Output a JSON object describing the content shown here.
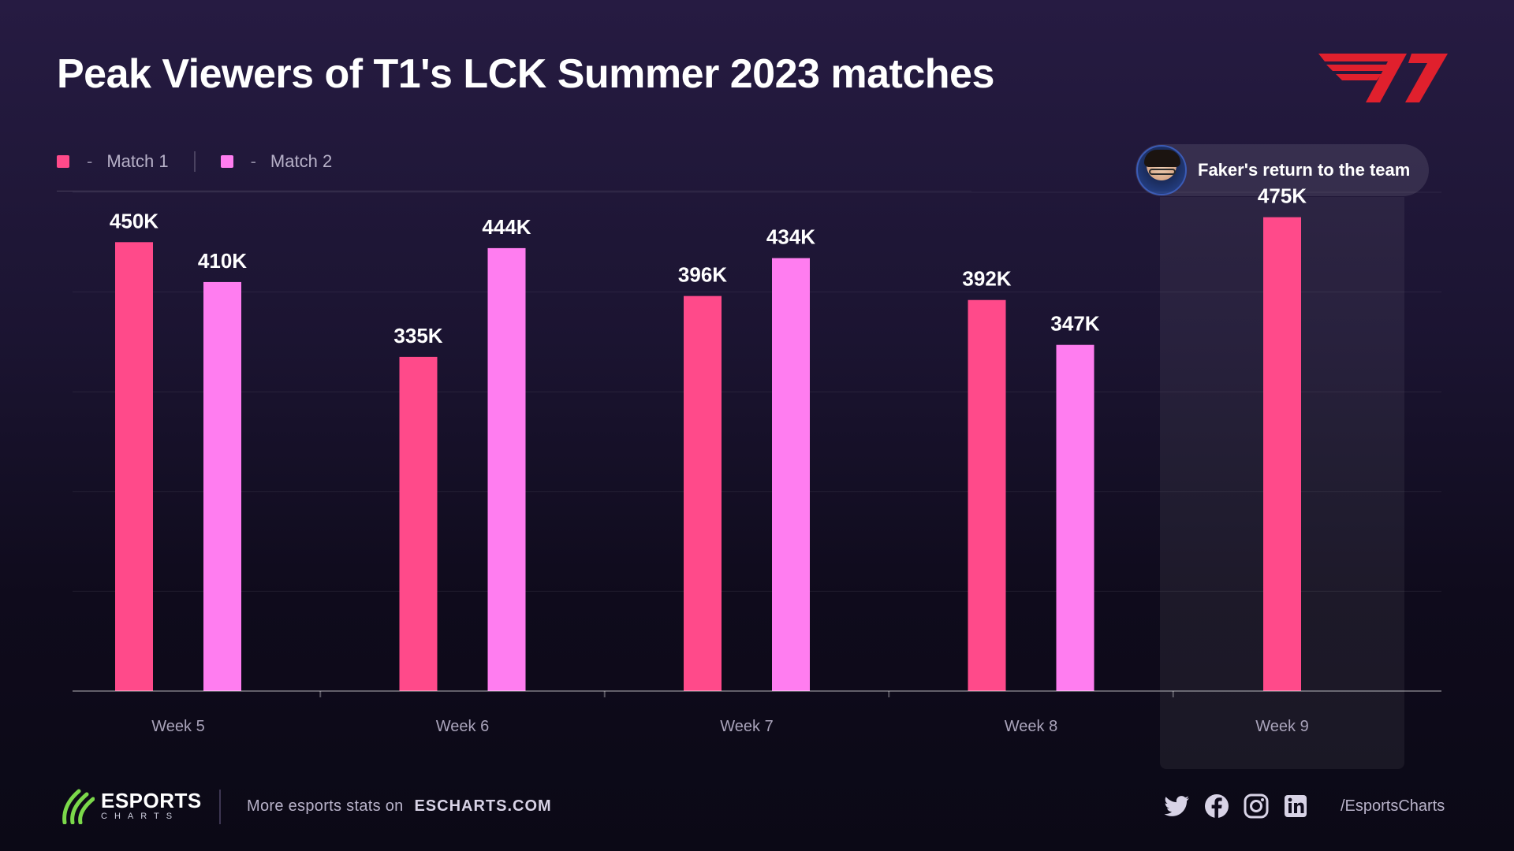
{
  "title": "Peak Viewers of T1's LCK Summer 2023 matches",
  "legend": {
    "dash": "-",
    "items": [
      {
        "label": "Match 1",
        "color": "#ff4a8a"
      },
      {
        "label": "Match 2",
        "color": "#ff7df0"
      }
    ]
  },
  "annotation": {
    "label": "Faker's return to the team"
  },
  "chart_data": {
    "type": "bar",
    "title": "Peak Viewers of T1's LCK Summer 2023 matches",
    "xlabel": "",
    "ylabel": "",
    "ylim": [
      0,
      500000
    ],
    "grid": true,
    "legend_position": "top-left",
    "categories": [
      "Week 5",
      "Week 6",
      "Week 7",
      "Week 8",
      "Week 9"
    ],
    "series": [
      {
        "name": "Match 1",
        "color": "#ff4a8a",
        "values": [
          450000,
          335000,
          396000,
          392000,
          475000
        ],
        "labels": [
          "450K",
          "335K",
          "396K",
          "392K",
          "475K"
        ]
      },
      {
        "name": "Match 2",
        "color": "#ff7df0",
        "values": [
          410000,
          444000,
          434000,
          347000,
          null
        ],
        "labels": [
          "410K",
          "444K",
          "434K",
          "347K",
          ""
        ]
      }
    ],
    "highlight_category": "Week 9"
  },
  "footer": {
    "logo_main": "ESPORTS",
    "logo_sub": "CHARTS",
    "more_text": "More esports stats on",
    "site": "ESCHARTS.COM",
    "handle": "/EsportsCharts",
    "social_icons": [
      "twitter-icon",
      "facebook-icon",
      "instagram-icon",
      "linkedin-icon"
    ]
  }
}
